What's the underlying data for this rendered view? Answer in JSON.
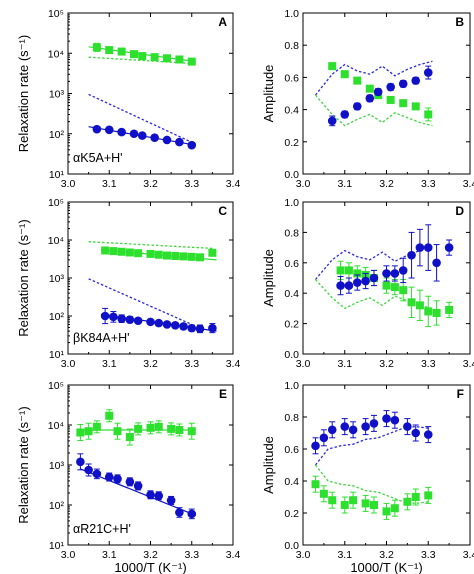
{
  "colors": {
    "green": "#2ee02e",
    "blue": "#1010c8",
    "green_dash": "#3ad83a",
    "blue_dash": "#2a2ae0"
  },
  "chart_data": [
    {
      "panel": "A",
      "type": "scatter",
      "scale_y": "log",
      "xlabel": "",
      "ylabel": "Relaxation rate (s⁻¹)",
      "annotation": "αK5A+H'",
      "xlim": [
        3.0,
        3.4
      ],
      "xticks": [
        "3.0",
        "3.1",
        "3.2",
        "3.3",
        "3.4"
      ],
      "ylim_exp": [
        1,
        5
      ],
      "yticks": [
        "10¹",
        "10²",
        "10³",
        "10⁴",
        "10⁵"
      ],
      "series": [
        {
          "color": "green",
          "marker": "square",
          "x": [
            3.07,
            3.1,
            3.13,
            3.16,
            3.18,
            3.21,
            3.24,
            3.27,
            3.3
          ],
          "y": [
            14000,
            12000,
            11000,
            9500,
            8500,
            8000,
            7500,
            7000,
            6200
          ],
          "err": [
            0.1,
            0.05,
            0.05,
            0.05,
            0.05,
            0.05,
            0.05,
            0.05,
            0.05
          ]
        },
        {
          "color": "blue",
          "marker": "circle",
          "x": [
            3.07,
            3.1,
            3.13,
            3.16,
            3.18,
            3.21,
            3.24,
            3.27,
            3.3
          ],
          "y": [
            130,
            125,
            110,
            100,
            90,
            80,
            70,
            62,
            52
          ],
          "err": [
            0.06,
            0.05,
            0.05,
            0.05,
            0.05,
            0.05,
            0.05,
            0.05,
            0.06
          ]
        }
      ],
      "solid_lines": [
        {
          "color": "green",
          "x": [
            3.05,
            3.31
          ],
          "y": [
            14500,
            6200
          ]
        },
        {
          "color": "blue",
          "x": [
            3.05,
            3.31
          ],
          "y": [
            150,
            52
          ]
        }
      ],
      "dashed_lines": [
        {
          "color": "green_dash",
          "x": [
            3.05,
            3.31
          ],
          "y": [
            8000,
            5500
          ]
        },
        {
          "color": "blue_dash",
          "x": [
            3.05,
            3.31
          ],
          "y": [
            950,
            55
          ]
        }
      ]
    },
    {
      "panel": "B",
      "type": "scatter",
      "scale_y": "linear",
      "xlabel": "",
      "ylabel": "Amplitude",
      "annotation": "",
      "xlim": [
        3.0,
        3.4
      ],
      "xticks": [
        "3.0",
        "3.1",
        "3.2",
        "3.3",
        "3.4"
      ],
      "ylim": [
        0.0,
        1.0
      ],
      "yticks": [
        "0.0",
        "0.2",
        "0.4",
        "0.6",
        "0.8",
        "1.0"
      ],
      "series": [
        {
          "color": "green",
          "marker": "square",
          "x": [
            3.07,
            3.1,
            3.13,
            3.16,
            3.18,
            3.21,
            3.24,
            3.27,
            3.3
          ],
          "y": [
            0.67,
            0.62,
            0.58,
            0.53,
            0.49,
            0.46,
            0.44,
            0.42,
            0.37
          ],
          "err": [
            0.02,
            0.02,
            0.02,
            0.02,
            0.02,
            0.02,
            0.02,
            0.02,
            0.04
          ]
        },
        {
          "color": "blue",
          "marker": "circle",
          "x": [
            3.07,
            3.1,
            3.13,
            3.16,
            3.18,
            3.21,
            3.24,
            3.27,
            3.3
          ],
          "y": [
            0.33,
            0.37,
            0.42,
            0.47,
            0.51,
            0.54,
            0.56,
            0.58,
            0.63
          ],
          "err": [
            0.03,
            0.02,
            0.02,
            0.02,
            0.02,
            0.02,
            0.02,
            0.02,
            0.04
          ]
        }
      ],
      "solid_lines": [],
      "dashed_lines": [
        {
          "color": "blue_dash",
          "x": [
            3.03,
            3.07,
            3.1,
            3.13,
            3.16,
            3.19,
            3.22,
            3.25,
            3.28,
            3.31
          ],
          "y": [
            0.49,
            0.62,
            0.68,
            0.64,
            0.62,
            0.67,
            0.61,
            0.65,
            0.68,
            0.7
          ]
        },
        {
          "color": "green_dash",
          "x": [
            3.03,
            3.07,
            3.1,
            3.13,
            3.16,
            3.19,
            3.22,
            3.25,
            3.28,
            3.31
          ],
          "y": [
            0.49,
            0.37,
            0.3,
            0.34,
            0.37,
            0.32,
            0.38,
            0.35,
            0.32,
            0.3
          ]
        }
      ]
    },
    {
      "panel": "C",
      "type": "scatter",
      "scale_y": "log",
      "xlabel": "",
      "ylabel": "Relaxation rate (s⁻¹)",
      "annotation": "βK84A+H'",
      "xlim": [
        3.0,
        3.4
      ],
      "xticks": [
        "3.0",
        "3.1",
        "3.2",
        "3.3",
        "3.4"
      ],
      "ylim_exp": [
        1,
        5
      ],
      "yticks": [
        "10¹",
        "10²",
        "10³",
        "10⁴",
        "10⁵"
      ],
      "series": [
        {
          "color": "green",
          "marker": "square",
          "x": [
            3.09,
            3.11,
            3.13,
            3.15,
            3.17,
            3.2,
            3.22,
            3.24,
            3.26,
            3.28,
            3.3,
            3.32,
            3.35
          ],
          "y": [
            5300,
            5100,
            4900,
            4700,
            4500,
            4300,
            4100,
            3900,
            3800,
            3700,
            3600,
            3500,
            4600
          ],
          "err": [
            0.04,
            0.04,
            0.04,
            0.04,
            0.04,
            0.04,
            0.04,
            0.04,
            0.04,
            0.04,
            0.04,
            0.04,
            0.04
          ]
        },
        {
          "color": "blue",
          "marker": "circle",
          "x": [
            3.09,
            3.11,
            3.13,
            3.15,
            3.17,
            3.2,
            3.22,
            3.24,
            3.26,
            3.28,
            3.3,
            3.32,
            3.35
          ],
          "y": [
            100,
            95,
            85,
            80,
            75,
            70,
            65,
            60,
            57,
            53,
            48,
            46,
            48
          ],
          "err": [
            0.2,
            0.14,
            0.1,
            0.08,
            0.07,
            0.06,
            0.06,
            0.06,
            0.06,
            0.07,
            0.08,
            0.1,
            0.12
          ]
        }
      ],
      "solid_lines": [
        {
          "color": "green",
          "x": [
            3.08,
            3.36
          ],
          "y": [
            5500,
            3000
          ]
        },
        {
          "color": "blue",
          "x": [
            3.08,
            3.36
          ],
          "y": [
            110,
            40
          ]
        }
      ],
      "dashed_lines": [
        {
          "color": "green_dash",
          "x": [
            3.05,
            3.35
          ],
          "y": [
            9000,
            6000
          ]
        },
        {
          "color": "blue_dash",
          "x": [
            3.05,
            3.3
          ],
          "y": [
            950,
            60
          ]
        }
      ]
    },
    {
      "panel": "D",
      "type": "scatter",
      "scale_y": "linear",
      "xlabel": "",
      "ylabel": "Amplitude",
      "annotation": "",
      "xlim": [
        3.0,
        3.4
      ],
      "xticks": [
        "3.0",
        "3.1",
        "3.2",
        "3.3",
        "3.4"
      ],
      "ylim": [
        0.0,
        1.0
      ],
      "yticks": [
        "0.0",
        "0.2",
        "0.4",
        "0.6",
        "0.8",
        "1.0"
      ],
      "series": [
        {
          "color": "green",
          "marker": "square",
          "x": [
            3.09,
            3.11,
            3.13,
            3.15,
            3.17,
            3.2,
            3.22,
            3.24,
            3.26,
            3.28,
            3.3,
            3.32,
            3.35
          ],
          "y": [
            0.55,
            0.55,
            0.53,
            0.52,
            0.5,
            0.45,
            0.44,
            0.42,
            0.34,
            0.32,
            0.28,
            0.27,
            0.29
          ],
          "err": [
            0.06,
            0.05,
            0.05,
            0.05,
            0.05,
            0.05,
            0.05,
            0.07,
            0.1,
            0.1,
            0.1,
            0.08,
            0.05
          ]
        },
        {
          "color": "blue",
          "marker": "circle",
          "x": [
            3.09,
            3.11,
            3.13,
            3.15,
            3.17,
            3.2,
            3.22,
            3.24,
            3.26,
            3.28,
            3.3,
            3.32,
            3.35
          ],
          "y": [
            0.45,
            0.45,
            0.47,
            0.48,
            0.5,
            0.53,
            0.53,
            0.55,
            0.65,
            0.7,
            0.7,
            0.6,
            0.7
          ],
          "err": [
            0.06,
            0.05,
            0.05,
            0.05,
            0.05,
            0.05,
            0.05,
            0.08,
            0.15,
            0.12,
            0.15,
            0.12,
            0.05
          ]
        }
      ],
      "solid_lines": [],
      "dashed_lines": [
        {
          "color": "blue_dash",
          "x": [
            3.03,
            3.07,
            3.1,
            3.13,
            3.16,
            3.19,
            3.22,
            3.25,
            3.28,
            3.31
          ],
          "y": [
            0.49,
            0.62,
            0.68,
            0.64,
            0.62,
            0.67,
            0.61,
            0.65,
            0.68,
            0.7
          ]
        },
        {
          "color": "green_dash",
          "x": [
            3.03,
            3.07,
            3.1,
            3.13,
            3.16,
            3.19,
            3.22,
            3.25,
            3.28,
            3.31
          ],
          "y": [
            0.49,
            0.37,
            0.3,
            0.34,
            0.37,
            0.32,
            0.38,
            0.35,
            0.32,
            0.3
          ]
        }
      ]
    },
    {
      "panel": "E",
      "type": "scatter",
      "scale_y": "log",
      "xlabel": "1000/T (K⁻¹)",
      "ylabel": "Relaxation rate (s⁻¹)",
      "annotation": "αR21C+H'",
      "xlim": [
        3.0,
        3.4
      ],
      "xticks": [
        "3.0",
        "3.1",
        "3.2",
        "3.3",
        "3.4"
      ],
      "ylim_exp": [
        1,
        5
      ],
      "yticks": [
        "10¹",
        "10²",
        "10³",
        "10⁴",
        "10⁵"
      ],
      "series": [
        {
          "color": "green",
          "marker": "square",
          "x": [
            3.03,
            3.05,
            3.07,
            3.1,
            3.12,
            3.15,
            3.17,
            3.2,
            3.22,
            3.25,
            3.27,
            3.3
          ],
          "y": [
            6500,
            7000,
            9000,
            17000,
            7000,
            5000,
            8000,
            8500,
            9000,
            8000,
            7500,
            7000
          ],
          "err": [
            0.2,
            0.2,
            0.15,
            0.15,
            0.2,
            0.2,
            0.15,
            0.15,
            0.15,
            0.15,
            0.15,
            0.2
          ]
        },
        {
          "color": "blue",
          "marker": "circle",
          "x": [
            3.03,
            3.05,
            3.07,
            3.1,
            3.12,
            3.15,
            3.17,
            3.2,
            3.22,
            3.25,
            3.27,
            3.3
          ],
          "y": [
            1200,
            750,
            600,
            500,
            450,
            380,
            300,
            180,
            170,
            130,
            65,
            60
          ],
          "err": [
            0.2,
            0.15,
            0.12,
            0.1,
            0.1,
            0.1,
            0.1,
            0.1,
            0.1,
            0.1,
            0.12,
            0.12
          ]
        }
      ],
      "solid_lines": [
        {
          "color": "green",
          "x": [
            3.03,
            3.31
          ],
          "y": [
            7500,
            7500
          ]
        },
        {
          "color": "blue",
          "x": [
            3.03,
            3.31
          ],
          "y": [
            800,
            55
          ]
        }
      ],
      "dashed_lines": []
    },
    {
      "panel": "F",
      "type": "scatter",
      "scale_y": "linear",
      "xlabel": "1000/T (K⁻¹)",
      "ylabel": "Amplitude",
      "annotation": "",
      "xlim": [
        3.0,
        3.4
      ],
      "xticks": [
        "3.0",
        "3.1",
        "3.2",
        "3.3",
        "3.4"
      ],
      "ylim": [
        0.0,
        1.0
      ],
      "yticks": [
        "0.0",
        "0.2",
        "0.4",
        "0.6",
        "0.8",
        "1.0"
      ],
      "series": [
        {
          "color": "green",
          "marker": "square",
          "x": [
            3.03,
            3.05,
            3.07,
            3.1,
            3.12,
            3.15,
            3.17,
            3.2,
            3.22,
            3.25,
            3.27,
            3.3
          ],
          "y": [
            0.38,
            0.32,
            0.28,
            0.25,
            0.28,
            0.26,
            0.25,
            0.21,
            0.23,
            0.27,
            0.3,
            0.31
          ],
          "err": [
            0.05,
            0.05,
            0.05,
            0.05,
            0.05,
            0.05,
            0.05,
            0.05,
            0.05,
            0.05,
            0.05,
            0.05
          ]
        },
        {
          "color": "blue",
          "marker": "circle",
          "x": [
            3.03,
            3.05,
            3.07,
            3.1,
            3.12,
            3.15,
            3.17,
            3.2,
            3.22,
            3.25,
            3.27,
            3.3
          ],
          "y": [
            0.62,
            0.67,
            0.72,
            0.74,
            0.72,
            0.74,
            0.76,
            0.79,
            0.78,
            0.74,
            0.7,
            0.69
          ],
          "err": [
            0.05,
            0.05,
            0.05,
            0.05,
            0.05,
            0.05,
            0.05,
            0.05,
            0.05,
            0.05,
            0.05,
            0.05
          ]
        }
      ],
      "solid_lines": [],
      "dashed_lines": [
        {
          "color": "blue_dash",
          "x": [
            3.03,
            3.06,
            3.09,
            3.12,
            3.15,
            3.18,
            3.21,
            3.24,
            3.27,
            3.3
          ],
          "y": [
            0.5,
            0.6,
            0.62,
            0.63,
            0.66,
            0.67,
            0.7,
            0.73,
            0.74,
            0.73
          ]
        },
        {
          "color": "green_dash",
          "x": [
            3.03,
            3.06,
            3.09,
            3.12,
            3.15,
            3.18,
            3.21,
            3.24,
            3.27,
            3.3
          ],
          "y": [
            0.5,
            0.4,
            0.38,
            0.37,
            0.34,
            0.33,
            0.3,
            0.27,
            0.26,
            0.27
          ]
        }
      ]
    }
  ]
}
